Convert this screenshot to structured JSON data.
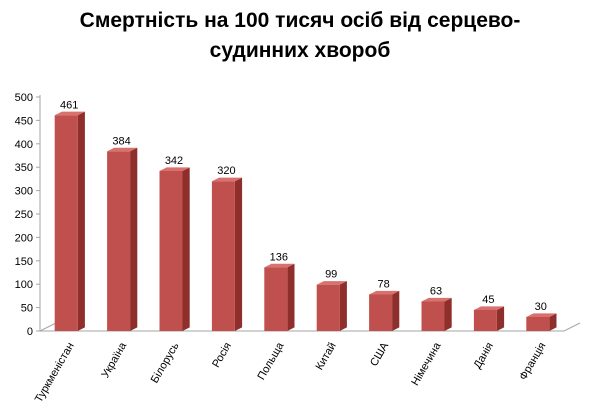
{
  "chart_data": {
    "type": "bar",
    "title_lines": [
      "Смертність на 100 тисяч осіб від серцево-",
      "судинних хвороб"
    ],
    "categories": [
      "Туркменістан",
      "Україна",
      "Білорусь",
      "Росія",
      "Польща",
      "Китай",
      "США",
      "Німечина",
      "Данія",
      "Франція"
    ],
    "values": [
      461,
      384,
      342,
      320,
      136,
      99,
      78,
      63,
      45,
      30
    ],
    "yticks": [
      "0",
      "50",
      "100",
      "150",
      "200",
      "250",
      "300",
      "350",
      "400",
      "450",
      "500"
    ],
    "ylim": [
      0,
      500
    ],
    "xlabel": "",
    "ylabel": "",
    "grid": false,
    "legend": "none",
    "style": "3d-column",
    "colors": {
      "bar_front": "#c0504d",
      "bar_side": "#8e2f2c",
      "bar_top": "#d9716e",
      "axis": "#a6a6a6"
    }
  }
}
